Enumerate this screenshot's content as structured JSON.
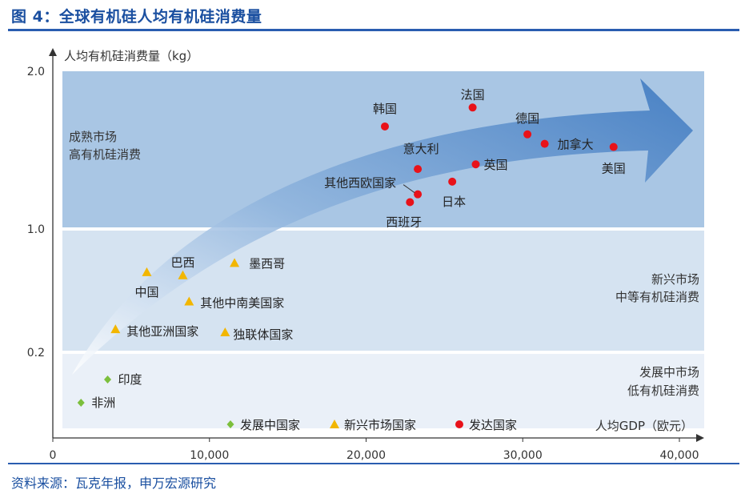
{
  "figure_title": "图 4：全球有机硅人均有机硅消费量",
  "source": "资料来源：瓦克年报，申万宏源研究",
  "chart_data": {
    "type": "scatter",
    "ylabel": "人均有机硅消费量（kg）",
    "xlabel": "人均GDP（欧元）",
    "xlim": [
      0,
      41000
    ],
    "x_ticks": [
      {
        "value": 0,
        "label": "0"
      },
      {
        "value": 10000,
        "label": "10,000"
      },
      {
        "value": 20000,
        "label": "20,000"
      },
      {
        "value": 30000,
        "label": "30,000"
      },
      {
        "value": 40000,
        "label": "40,000"
      }
    ],
    "y_ticks": [
      {
        "value": 0.2,
        "label": "0.2"
      },
      {
        "value": 1.0,
        "label": "1.0"
      },
      {
        "value": 2.0,
        "label": "2.0"
      }
    ],
    "bands": [
      {
        "name": "mature",
        "y_from": 1.0,
        "y_to": 2.0,
        "color": "#a9c6e4",
        "text": [
          "成熟市场",
          "高有机硅消费"
        ],
        "align": "left"
      },
      {
        "name": "emerging",
        "y_from": 0.2,
        "y_to": 1.0,
        "color": "#d5e3f1",
        "text": [
          "新兴市场",
          "中等有机硅消费"
        ],
        "align": "right"
      },
      {
        "name": "developing",
        "y_from": 0.0,
        "y_to": 0.2,
        "color": "#eaf0f8",
        "text": [
          "发展中市场",
          "低有机硅消费"
        ],
        "align": "right"
      }
    ],
    "legend": {
      "position": "bottom",
      "items": [
        {
          "label": "发展中国家",
          "marker": "diamond",
          "color": "#7cbf3c"
        },
        {
          "label": "新兴市场国家",
          "marker": "triangle",
          "color": "#f2b600"
        },
        {
          "label": "发达国家",
          "marker": "circle",
          "color": "#e8121a"
        }
      ]
    },
    "series": [
      {
        "name": "发展中国家",
        "marker": "diamond",
        "color": "#7cbf3c",
        "points": [
          {
            "label": "印度",
            "x": 3500,
            "y": 0.13
          },
          {
            "label": "非洲",
            "x": 1800,
            "y": 0.07
          }
        ]
      },
      {
        "name": "新兴市场国家",
        "marker": "triangle",
        "color": "#f2b600",
        "points": [
          {
            "label": "中国",
            "x": 6000,
            "y": 0.72
          },
          {
            "label": "巴西",
            "x": 8300,
            "y": 0.7
          },
          {
            "label": "墨西哥",
            "x": 11600,
            "y": 0.78
          },
          {
            "label": "其他中南美国家",
            "x": 8700,
            "y": 0.53
          },
          {
            "label": "其他亚洲国家",
            "x": 4000,
            "y": 0.35
          },
          {
            "label": "独联体国家",
            "x": 11000,
            "y": 0.33
          }
        ]
      },
      {
        "name": "发达国家",
        "marker": "circle",
        "color": "#e8121a",
        "points": [
          {
            "label": "韩国",
            "x": 21200,
            "y": 1.65
          },
          {
            "label": "法国",
            "x": 26800,
            "y": 1.77
          },
          {
            "label": "德国",
            "x": 30300,
            "y": 1.6
          },
          {
            "label": "加拿大",
            "x": 31400,
            "y": 1.54
          },
          {
            "label": "美国",
            "x": 35800,
            "y": 1.52
          },
          {
            "label": "意大利",
            "x": 23300,
            "y": 1.38
          },
          {
            "label": "英国",
            "x": 27000,
            "y": 1.41
          },
          {
            "label": "日本",
            "x": 25500,
            "y": 1.3
          },
          {
            "label": "其他西欧国家",
            "x": 23300,
            "y": 1.22
          },
          {
            "label": "西班牙",
            "x": 22800,
            "y": 1.17
          }
        ]
      }
    ]
  }
}
